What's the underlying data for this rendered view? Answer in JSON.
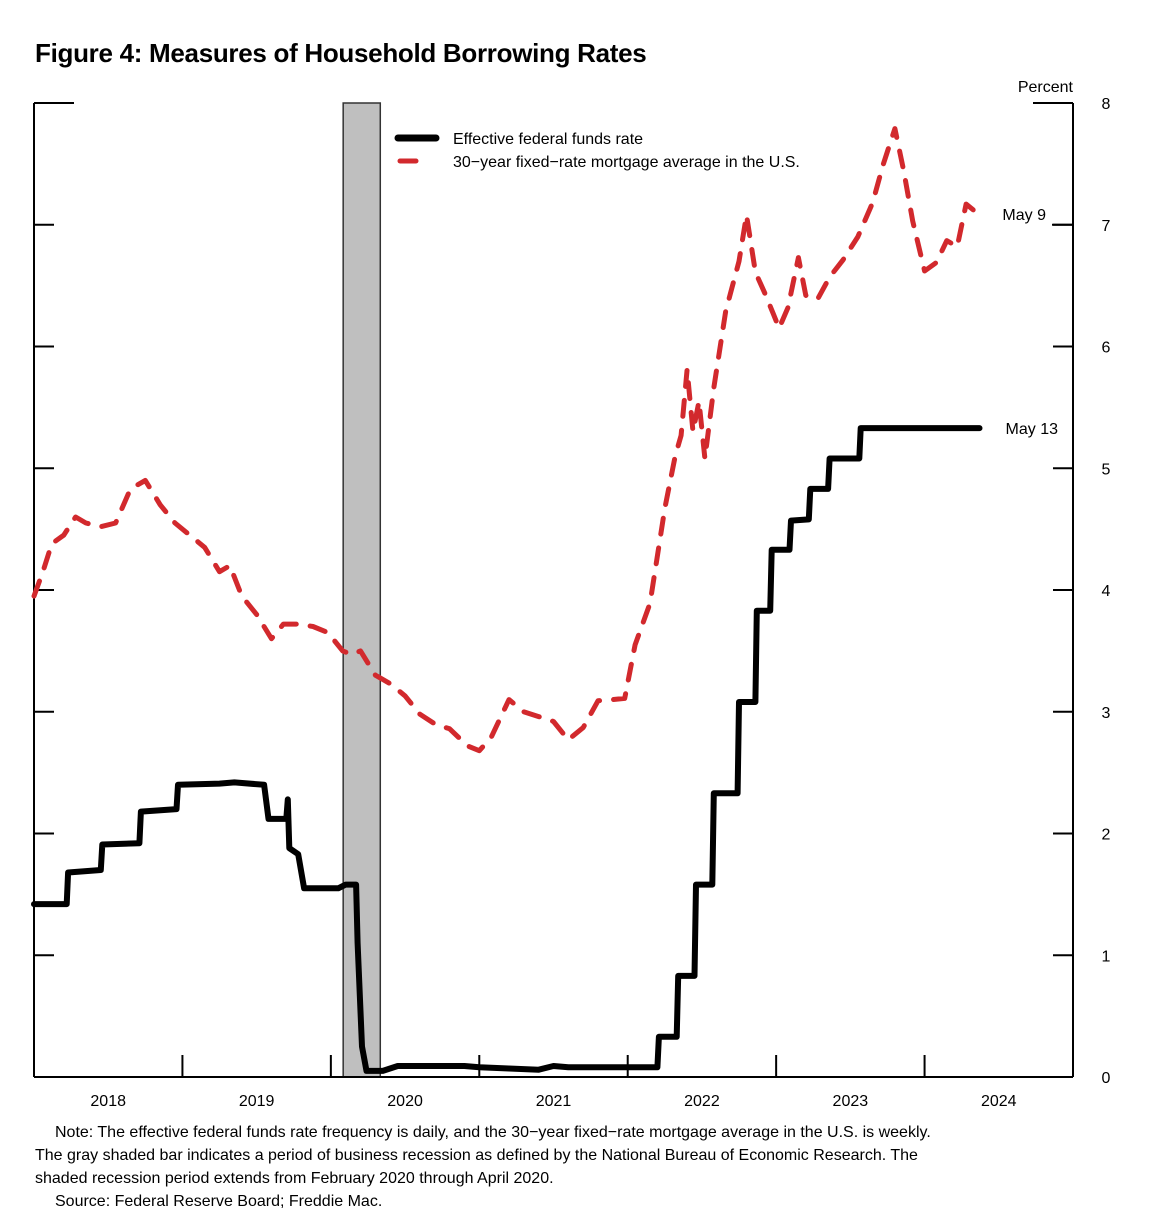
{
  "title": "Figure 4: Measures of Household Borrowing Rates",
  "chart_data": {
    "type": "line",
    "title": "Figure 4: Measures of Household Borrowing Rates",
    "ylabel": "Percent",
    "xlabel": "",
    "ylim": [
      0,
      8
    ],
    "xlim": [
      2018.0,
      2025.0
    ],
    "yticks": [
      0,
      1,
      2,
      3,
      4,
      5,
      6,
      7,
      8
    ],
    "xtick_labels": [
      "2018",
      "2019",
      "2020",
      "2021",
      "2022",
      "2023",
      "2024"
    ],
    "grid": false,
    "legend_position": "top-center",
    "recession": {
      "start": 2020.083,
      "end": 2020.333,
      "color": "#bfbfbf",
      "label": "recession"
    },
    "series": [
      {
        "name": "Effective federal funds rate",
        "color": "#000000",
        "style": "solid",
        "end_label": "May 13",
        "points": [
          [
            2018.0,
            1.42
          ],
          [
            2018.22,
            1.42
          ],
          [
            2018.23,
            1.68
          ],
          [
            2018.45,
            1.7
          ],
          [
            2018.46,
            1.91
          ],
          [
            2018.71,
            1.92
          ],
          [
            2018.72,
            2.18
          ],
          [
            2018.96,
            2.2
          ],
          [
            2018.97,
            2.4
          ],
          [
            2019.25,
            2.41
          ],
          [
            2019.35,
            2.42
          ],
          [
            2019.55,
            2.4
          ],
          [
            2019.58,
            2.12
          ],
          [
            2019.7,
            2.12
          ],
          [
            2019.71,
            2.28
          ],
          [
            2019.72,
            1.88
          ],
          [
            2019.78,
            1.83
          ],
          [
            2019.82,
            1.55
          ],
          [
            2020.05,
            1.55
          ],
          [
            2020.1,
            1.58
          ],
          [
            2020.17,
            1.58
          ],
          [
            2020.18,
            1.1
          ],
          [
            2020.21,
            0.25
          ],
          [
            2020.24,
            0.05
          ],
          [
            2020.35,
            0.05
          ],
          [
            2020.45,
            0.09
          ],
          [
            2020.6,
            0.09
          ],
          [
            2020.9,
            0.09
          ],
          [
            2021.0,
            0.08
          ],
          [
            2021.2,
            0.07
          ],
          [
            2021.4,
            0.06
          ],
          [
            2021.5,
            0.09
          ],
          [
            2021.6,
            0.08
          ],
          [
            2021.8,
            0.08
          ],
          [
            2022.08,
            0.08
          ],
          [
            2022.2,
            0.08
          ],
          [
            2022.21,
            0.33
          ],
          [
            2022.33,
            0.33
          ],
          [
            2022.34,
            0.83
          ],
          [
            2022.45,
            0.83
          ],
          [
            2022.46,
            1.58
          ],
          [
            2022.57,
            1.58
          ],
          [
            2022.58,
            2.33
          ],
          [
            2022.74,
            2.33
          ],
          [
            2022.75,
            3.08
          ],
          [
            2022.86,
            3.08
          ],
          [
            2022.87,
            3.83
          ],
          [
            2022.96,
            3.83
          ],
          [
            2022.97,
            4.33
          ],
          [
            2023.09,
            4.33
          ],
          [
            2023.1,
            4.57
          ],
          [
            2023.22,
            4.58
          ],
          [
            2023.23,
            4.83
          ],
          [
            2023.35,
            4.83
          ],
          [
            2023.36,
            5.08
          ],
          [
            2023.56,
            5.08
          ],
          [
            2023.57,
            5.33
          ],
          [
            2024.37,
            5.33
          ]
        ]
      },
      {
        "name": "30-year fixed-rate mortgage average in the U.S.",
        "color": "#d2292d",
        "style": "dashed",
        "end_label": "May 9",
        "points": [
          [
            2018.0,
            3.95
          ],
          [
            2018.06,
            4.15
          ],
          [
            2018.12,
            4.38
          ],
          [
            2018.2,
            4.45
          ],
          [
            2018.28,
            4.6
          ],
          [
            2018.35,
            4.55
          ],
          [
            2018.45,
            4.52
          ],
          [
            2018.55,
            4.55
          ],
          [
            2018.65,
            4.83
          ],
          [
            2018.75,
            4.9
          ],
          [
            2018.85,
            4.7
          ],
          [
            2018.95,
            4.55
          ],
          [
            2019.05,
            4.45
          ],
          [
            2019.15,
            4.35
          ],
          [
            2019.25,
            4.15
          ],
          [
            2019.32,
            4.2
          ],
          [
            2019.4,
            3.95
          ],
          [
            2019.5,
            3.8
          ],
          [
            2019.6,
            3.6
          ],
          [
            2019.68,
            3.72
          ],
          [
            2019.78,
            3.72
          ],
          [
            2019.88,
            3.7
          ],
          [
            2019.98,
            3.65
          ],
          [
            2020.08,
            3.5
          ],
          [
            2020.14,
            3.47
          ],
          [
            2020.2,
            3.5
          ],
          [
            2020.3,
            3.3
          ],
          [
            2020.4,
            3.23
          ],
          [
            2020.5,
            3.13
          ],
          [
            2020.6,
            2.98
          ],
          [
            2020.7,
            2.9
          ],
          [
            2020.8,
            2.86
          ],
          [
            2020.92,
            2.72
          ],
          [
            2021.0,
            2.68
          ],
          [
            2021.08,
            2.79
          ],
          [
            2021.2,
            3.1
          ],
          [
            2021.3,
            3.0
          ],
          [
            2021.4,
            2.96
          ],
          [
            2021.5,
            2.92
          ],
          [
            2021.6,
            2.77
          ],
          [
            2021.7,
            2.87
          ],
          [
            2021.8,
            3.09
          ],
          [
            2021.9,
            3.1
          ],
          [
            2021.98,
            3.11
          ],
          [
            2022.05,
            3.55
          ],
          [
            2022.15,
            3.89
          ],
          [
            2022.25,
            4.67
          ],
          [
            2022.32,
            5.1
          ],
          [
            2022.36,
            5.27
          ],
          [
            2022.4,
            5.81
          ],
          [
            2022.44,
            5.3
          ],
          [
            2022.48,
            5.55
          ],
          [
            2022.52,
            5.08
          ],
          [
            2022.58,
            5.66
          ],
          [
            2022.66,
            6.29
          ],
          [
            2022.75,
            6.7
          ],
          [
            2022.8,
            7.08
          ],
          [
            2022.86,
            6.61
          ],
          [
            2022.93,
            6.42
          ],
          [
            2022.98,
            6.27
          ],
          [
            2023.02,
            6.15
          ],
          [
            2023.08,
            6.32
          ],
          [
            2023.15,
            6.73
          ],
          [
            2023.2,
            6.42
          ],
          [
            2023.28,
            6.39
          ],
          [
            2023.36,
            6.57
          ],
          [
            2023.45,
            6.71
          ],
          [
            2023.55,
            6.9
          ],
          [
            2023.65,
            7.18
          ],
          [
            2023.72,
            7.49
          ],
          [
            2023.8,
            7.79
          ],
          [
            2023.86,
            7.44
          ],
          [
            2023.92,
            7.03
          ],
          [
            2024.0,
            6.62
          ],
          [
            2024.08,
            6.69
          ],
          [
            2024.15,
            6.87
          ],
          [
            2024.22,
            6.82
          ],
          [
            2024.28,
            7.17
          ],
          [
            2024.36,
            7.09
          ]
        ]
      }
    ]
  },
  "notes": [
    "Note: The effective federal funds rate frequency is daily, and the 30−year fixed−rate mortgage average in the U.S. is weekly.",
    "The gray shaded bar indicates a period of business recession as defined by the National Bureau of Economic Research. The",
    "shaded recession period extends from February 2020 through April 2020.",
    "Source: Federal Reserve Board; Freddie Mac."
  ]
}
